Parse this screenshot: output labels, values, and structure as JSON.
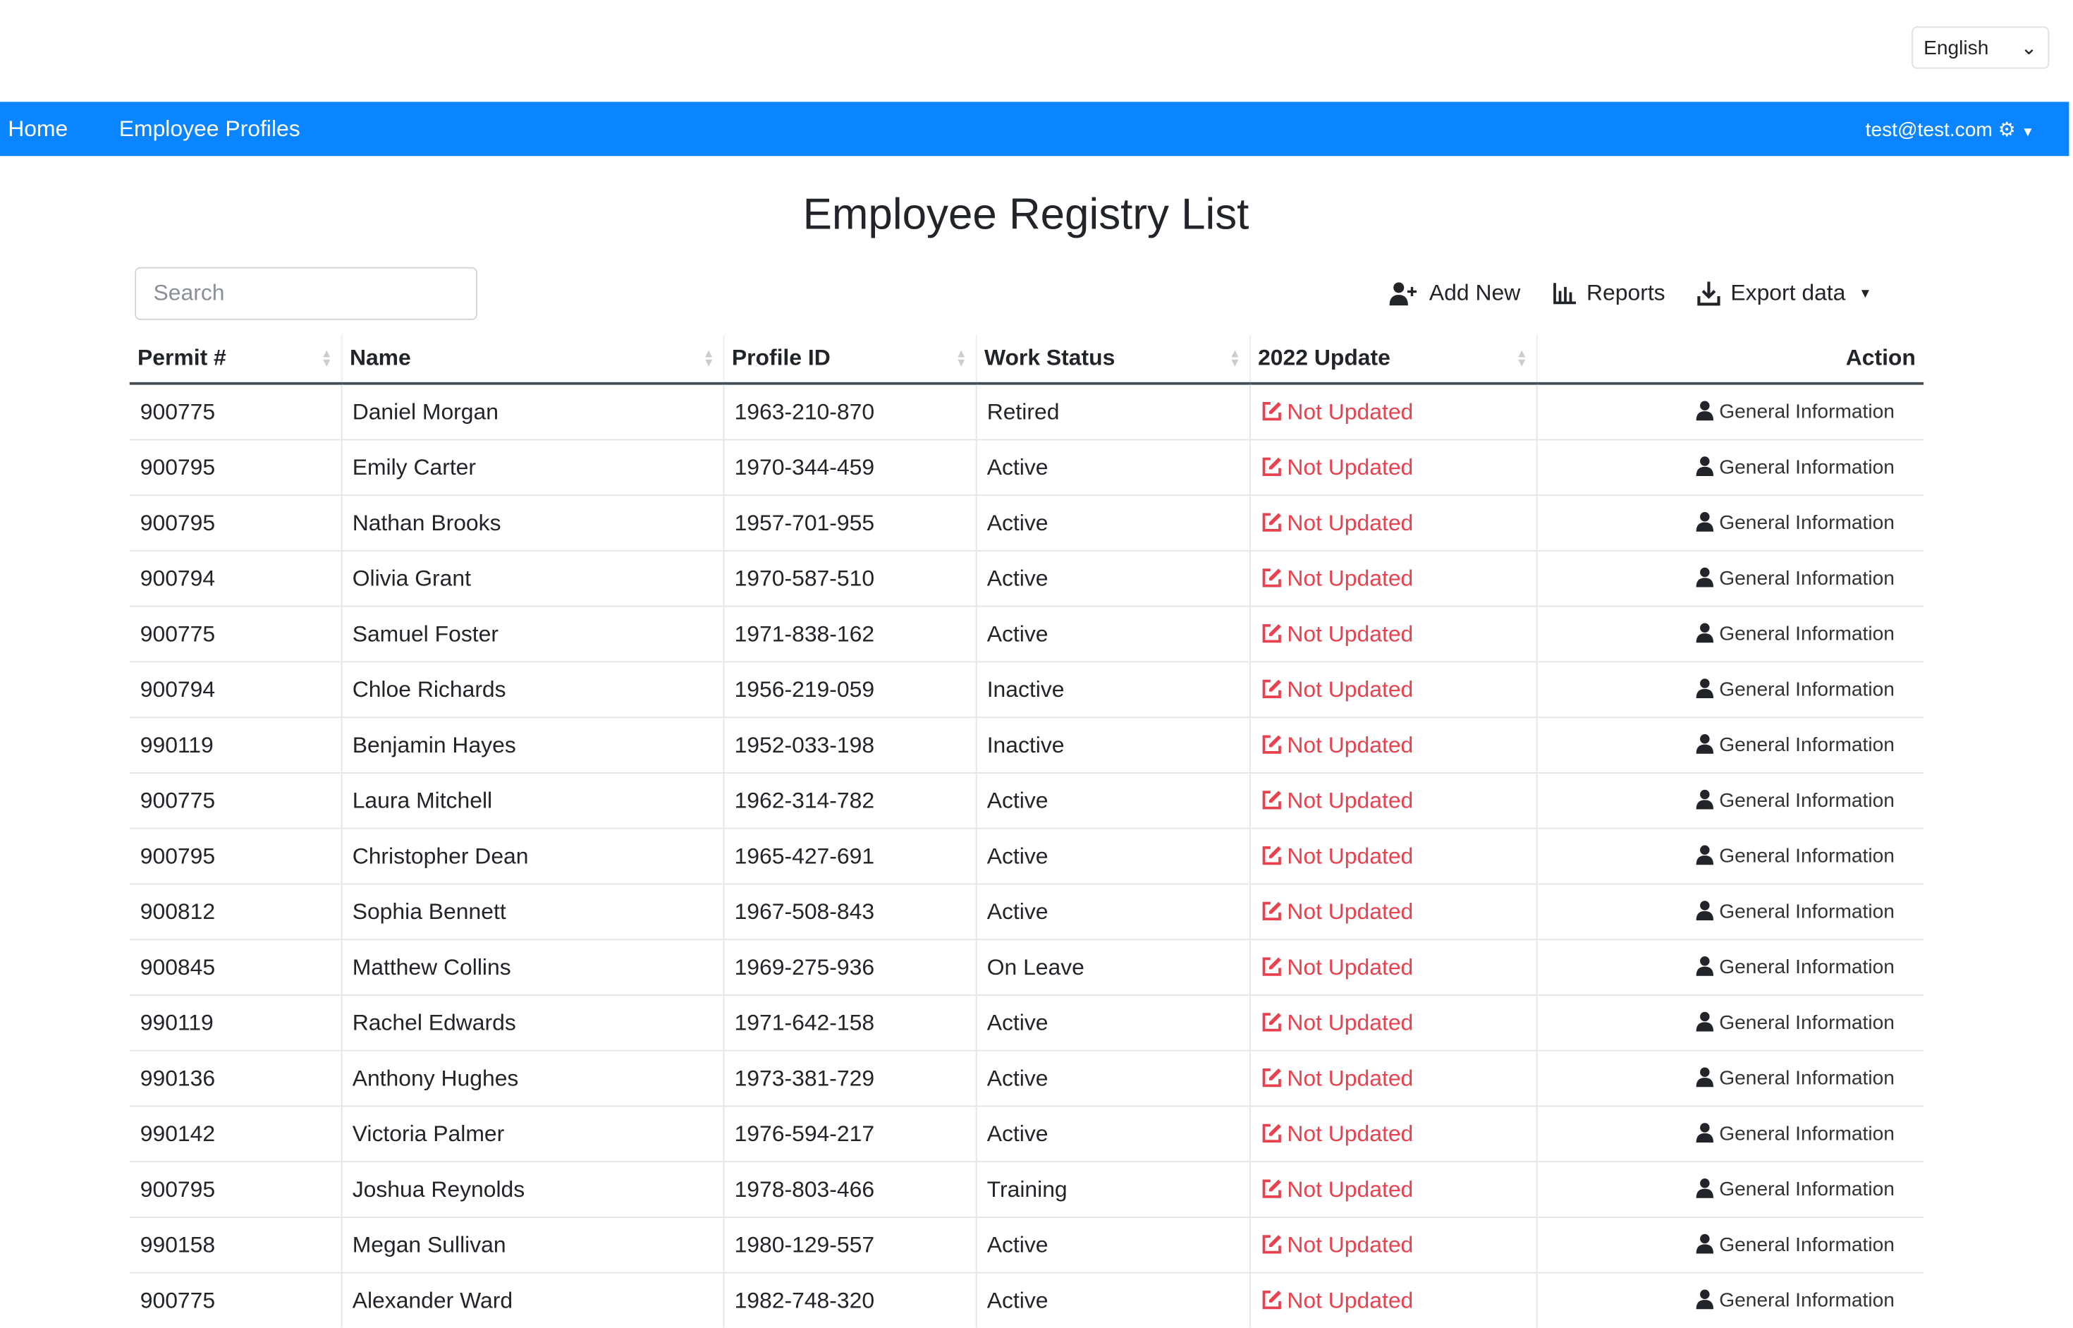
{
  "language": {
    "selected": "English"
  },
  "nav": {
    "home": "Home",
    "profiles": "Employee Profiles",
    "user": "test@test.com",
    "brand_color": "#0a84ff"
  },
  "title": "Employee Registry List",
  "search": {
    "placeholder": "Search",
    "value": ""
  },
  "toolbar": {
    "add": "Add New",
    "reports": "Reports",
    "export": "Export data"
  },
  "table": {
    "headers": [
      "Permit #",
      "Name",
      "Profile ID",
      "Work Status",
      "2022 Update",
      "Action"
    ],
    "update_label": "Not Updated",
    "action_label": "General Information",
    "update_color": "#e8424f",
    "rows": [
      [
        "900775",
        "Daniel Morgan",
        "1963-210-870",
        "Retired"
      ],
      [
        "900795",
        "Emily Carter",
        "1970-344-459",
        "Active"
      ],
      [
        "900795",
        "Nathan Brooks",
        "1957-701-955",
        "Active"
      ],
      [
        "900794",
        "Olivia Grant",
        "1970-587-510",
        "Active"
      ],
      [
        "900775",
        "Samuel Foster",
        "1971-838-162",
        "Active"
      ],
      [
        "900794",
        "Chloe Richards",
        "1956-219-059",
        "Inactive"
      ],
      [
        "990119",
        "Benjamin Hayes",
        "1952-033-198",
        "Inactive"
      ],
      [
        "900775",
        "Laura Mitchell",
        "1962-314-782",
        "Active"
      ],
      [
        "900795",
        "Christopher Dean",
        "1965-427-691",
        "Active"
      ],
      [
        "900812",
        "Sophia Bennett",
        "1967-508-843",
        "Active"
      ],
      [
        "900845",
        "Matthew Collins",
        "1969-275-936",
        "On Leave"
      ],
      [
        "990119",
        "Rachel Edwards",
        "1971-642-158",
        "Active"
      ],
      [
        "990136",
        "Anthony Hughes",
        "1973-381-729",
        "Active"
      ],
      [
        "990142",
        "Victoria Palmer",
        "1976-594-217",
        "Active"
      ],
      [
        "900795",
        "Joshua Reynolds",
        "1978-803-466",
        "Training"
      ],
      [
        "990158",
        "Megan Sullivan",
        "1980-129-557",
        "Active"
      ],
      [
        "900775",
        "Alexander Ward",
        "1982-748-320",
        "Active"
      ]
    ]
  }
}
